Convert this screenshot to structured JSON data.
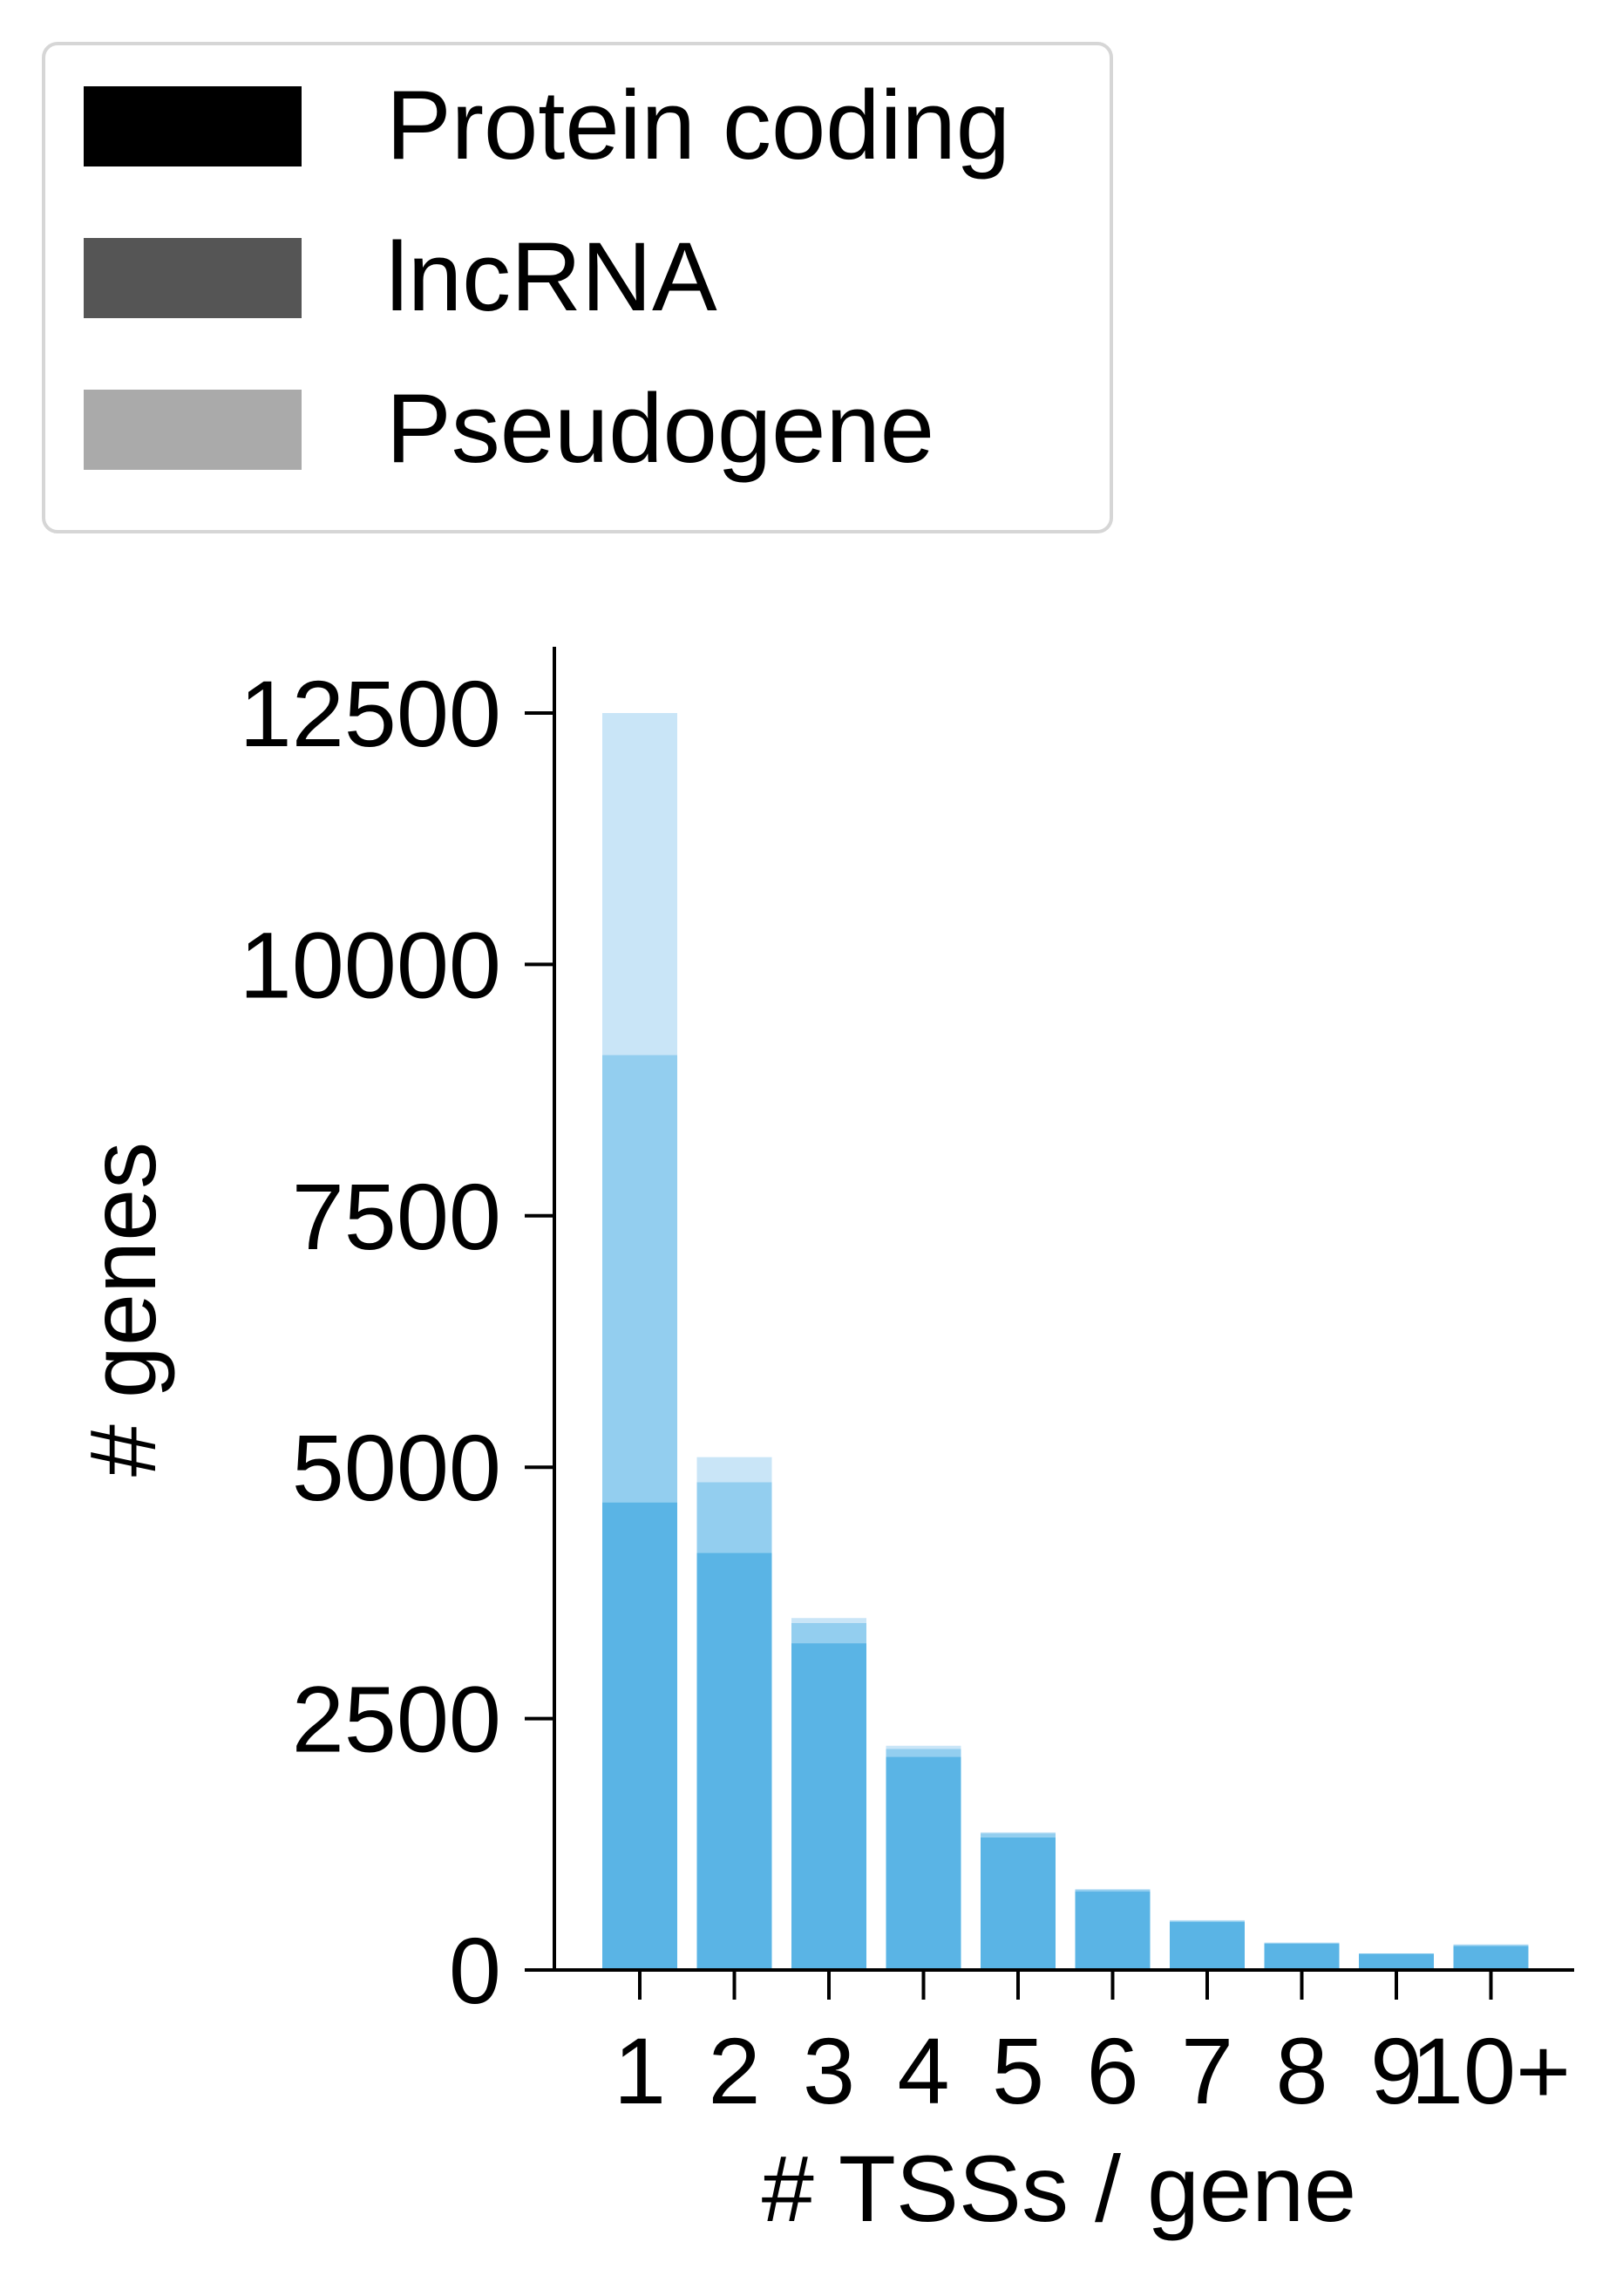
{
  "chart_data": {
    "type": "bar",
    "stacked": true,
    "title": "",
    "xlabel": "# TSSs / gene",
    "ylabel": "# genes",
    "categories": [
      "1",
      "2",
      "3",
      "4",
      "5",
      "6",
      "7",
      "8",
      "9",
      "10+"
    ],
    "series": [
      {
        "name": "Protein coding",
        "color": "#5ab4e5",
        "values": [
          4650,
          4150,
          3250,
          2120,
          1320,
          780,
          480,
          260,
          160,
          240
        ]
      },
      {
        "name": "lncRNA",
        "color": "#93ceef",
        "values": [
          4450,
          700,
          200,
          80,
          40,
          20,
          10,
          10,
          5,
          10
        ]
      },
      {
        "name": "Pseudogene",
        "color": "#c9e5f7",
        "values": [
          3400,
          250,
          50,
          30,
          10,
          5,
          5,
          5,
          0,
          5
        ]
      }
    ],
    "yticks": [
      0,
      2500,
      5000,
      7500,
      10000,
      12500
    ],
    "ylim": [
      0,
      13100
    ],
    "grid": false,
    "legend": {
      "placement": "top-left",
      "entries": [
        {
          "label": "Protein coding",
          "swatch_color": "#000000"
        },
        {
          "label": "lncRNA",
          "swatch_color": "#555555"
        },
        {
          "label": "Pseudogene",
          "swatch_color": "#aaaaaa"
        }
      ]
    }
  }
}
